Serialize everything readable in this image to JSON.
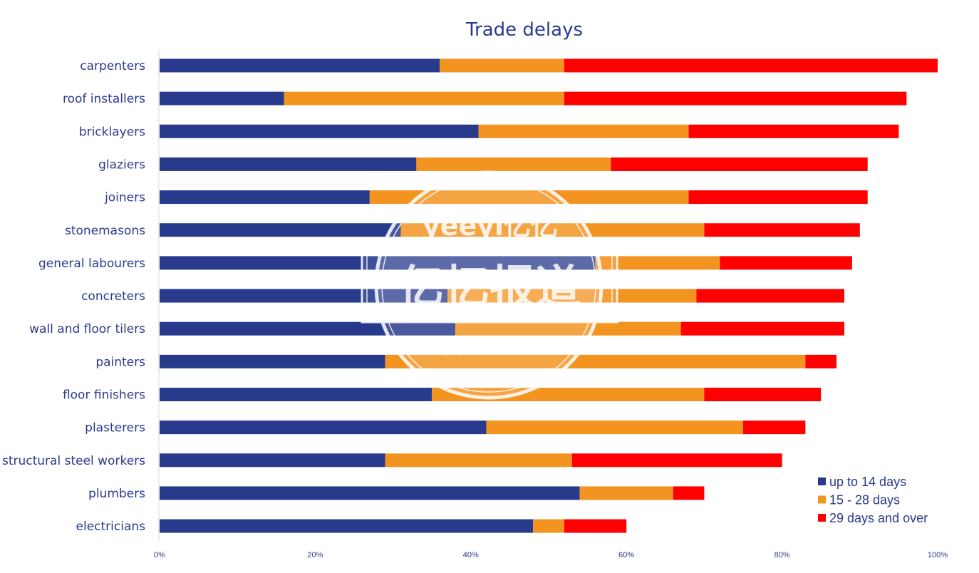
{
  "chart_data": {
    "type": "bar",
    "orientation": "horizontal",
    "stacked": true,
    "title": "Trade delays",
    "categories": [
      "carpenters",
      "roof installers",
      "bricklayers",
      "glaziers",
      "joiners",
      "stonemasons",
      "general labourers",
      "concreters",
      "wall and floor tilers",
      "painters",
      "floor finishers",
      "plasterers",
      "structural steel workers",
      "plumbers",
      "electricians"
    ],
    "series": [
      {
        "name": "up to 14 days",
        "color": "#283a8c",
        "values": [
          36,
          16,
          41,
          33,
          27,
          31,
          56,
          37,
          38,
          29,
          35,
          42,
          29,
          54,
          48
        ]
      },
      {
        "name": "15 - 28 days",
        "color": "#f39320",
        "values": [
          16,
          36,
          27,
          25,
          41,
          39,
          16,
          32,
          29,
          54,
          35,
          33,
          24,
          12,
          4
        ]
      },
      {
        "name": "29 days and over",
        "color": "#ff0000",
        "values": [
          48,
          44,
          27,
          33,
          23,
          20,
          17,
          19,
          21,
          4,
          15,
          8,
          27,
          4,
          8
        ]
      }
    ],
    "xlim": [
      0,
      100
    ],
    "x_ticks": [
      "0%",
      "20%",
      "40%",
      "60%",
      "80%",
      "100%"
    ],
    "legend_position": "bottom-right",
    "grid": false
  },
  "watermark": {
    "line1": "yeeyi亿忆",
    "line2": "亿忆报道",
    "line3": "手机亿忆APP"
  }
}
